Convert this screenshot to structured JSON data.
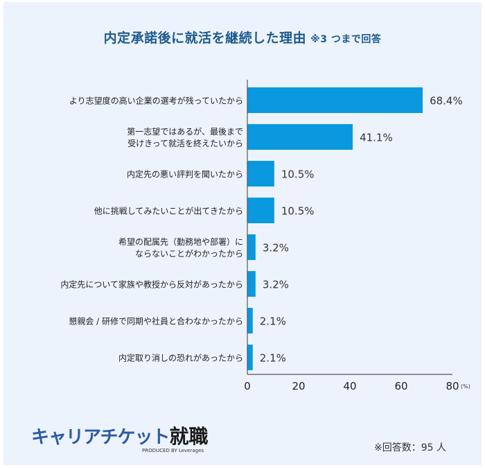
{
  "title": "内定承諾後に就活を継続した理由",
  "title_note": "※3 つまで回答",
  "chart_data": {
    "type": "bar",
    "orientation": "horizontal",
    "categories": [
      [
        "より志望度の高い企業の選考が残っていたから"
      ],
      [
        "第一志望ではあるが、最後まで",
        "受けきって就活を終えたいから"
      ],
      [
        "内定先の悪い評判を聞いたから"
      ],
      [
        "他に挑戦してみたいことが出てきたから"
      ],
      [
        "希望の配属先（勤務地や部署）に",
        "ならないことがわかったから"
      ],
      [
        "内定先について家族や教授から反対があったから"
      ],
      [
        "懇親会 / 研修で同期や社員と合わなかったから"
      ],
      [
        "内定取り消しの恐れがあったから"
      ]
    ],
    "values": [
      68.4,
      41.1,
      10.5,
      10.5,
      3.2,
      3.2,
      2.1,
      2.1
    ],
    "data_labels": [
      "68.4%",
      "41.1%",
      "10.5%",
      "10.5%",
      "3.2%",
      "3.2%",
      "2.1%",
      "2.1%"
    ],
    "xlim": [
      0,
      80
    ],
    "ticks": [
      "0",
      "20",
      "40",
      "60",
      "80"
    ],
    "tick_values": [
      0,
      20,
      40,
      60,
      80
    ],
    "unit_label": "(%)",
    "bar_color": "#0a99df",
    "grid": false
  },
  "logo": {
    "main": "キャリアチケット",
    "accent": "就職",
    "sub": "PRODUCED BY Leverages"
  },
  "respondents": "※回答数：95 人"
}
